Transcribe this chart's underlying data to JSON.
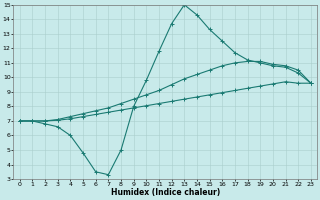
{
  "xlabel": "Humidex (Indice chaleur)",
  "bg_color": "#c8eaea",
  "grid_color": "#aacfcc",
  "line_color": "#1a7a72",
  "xlim": [
    -0.5,
    23.5
  ],
  "ylim": [
    3,
    15
  ],
  "xticks": [
    0,
    1,
    2,
    3,
    4,
    5,
    6,
    7,
    8,
    9,
    10,
    11,
    12,
    13,
    14,
    15,
    16,
    17,
    18,
    19,
    20,
    21,
    22,
    23
  ],
  "yticks": [
    3,
    4,
    5,
    6,
    7,
    8,
    9,
    10,
    11,
    12,
    13,
    14,
    15
  ],
  "line1_x": [
    0,
    1,
    2,
    3,
    4,
    5,
    6,
    7,
    8,
    9,
    10,
    11,
    12,
    13,
    14,
    15,
    16,
    17,
    18,
    19,
    20,
    21,
    22,
    23
  ],
  "line1_y": [
    7.0,
    7.0,
    7.0,
    7.05,
    7.15,
    7.3,
    7.45,
    7.6,
    7.75,
    7.9,
    8.05,
    8.2,
    8.35,
    8.5,
    8.65,
    8.8,
    8.95,
    9.1,
    9.25,
    9.4,
    9.55,
    9.7,
    9.6,
    9.6
  ],
  "line2_x": [
    0,
    1,
    2,
    3,
    4,
    5,
    6,
    7,
    8,
    9,
    10,
    11,
    12,
    13,
    14,
    15,
    16,
    17,
    18,
    19,
    20,
    21,
    22,
    23
  ],
  "line2_y": [
    7.0,
    7.0,
    7.0,
    7.1,
    7.3,
    7.5,
    7.7,
    7.9,
    8.2,
    8.5,
    8.8,
    9.1,
    9.5,
    9.9,
    10.2,
    10.5,
    10.8,
    11.0,
    11.1,
    11.1,
    10.9,
    10.8,
    10.5,
    9.6
  ],
  "line3_x": [
    0,
    1,
    2,
    3,
    4,
    5,
    6,
    7,
    8,
    9,
    10,
    11,
    12,
    13,
    14,
    15,
    16,
    17,
    18,
    19,
    20,
    21,
    22,
    23
  ],
  "line3_y": [
    7.0,
    7.0,
    6.8,
    6.6,
    6.0,
    4.8,
    3.5,
    3.3,
    5.0,
    8.0,
    9.8,
    11.8,
    13.7,
    15.0,
    14.3,
    13.3,
    12.5,
    11.7,
    11.2,
    11.0,
    10.8,
    10.7,
    10.3,
    9.6
  ],
  "tick_fontsize": 4.5,
  "xlabel_fontsize": 5.5,
  "marker_size": 2.5,
  "line_width": 0.8
}
